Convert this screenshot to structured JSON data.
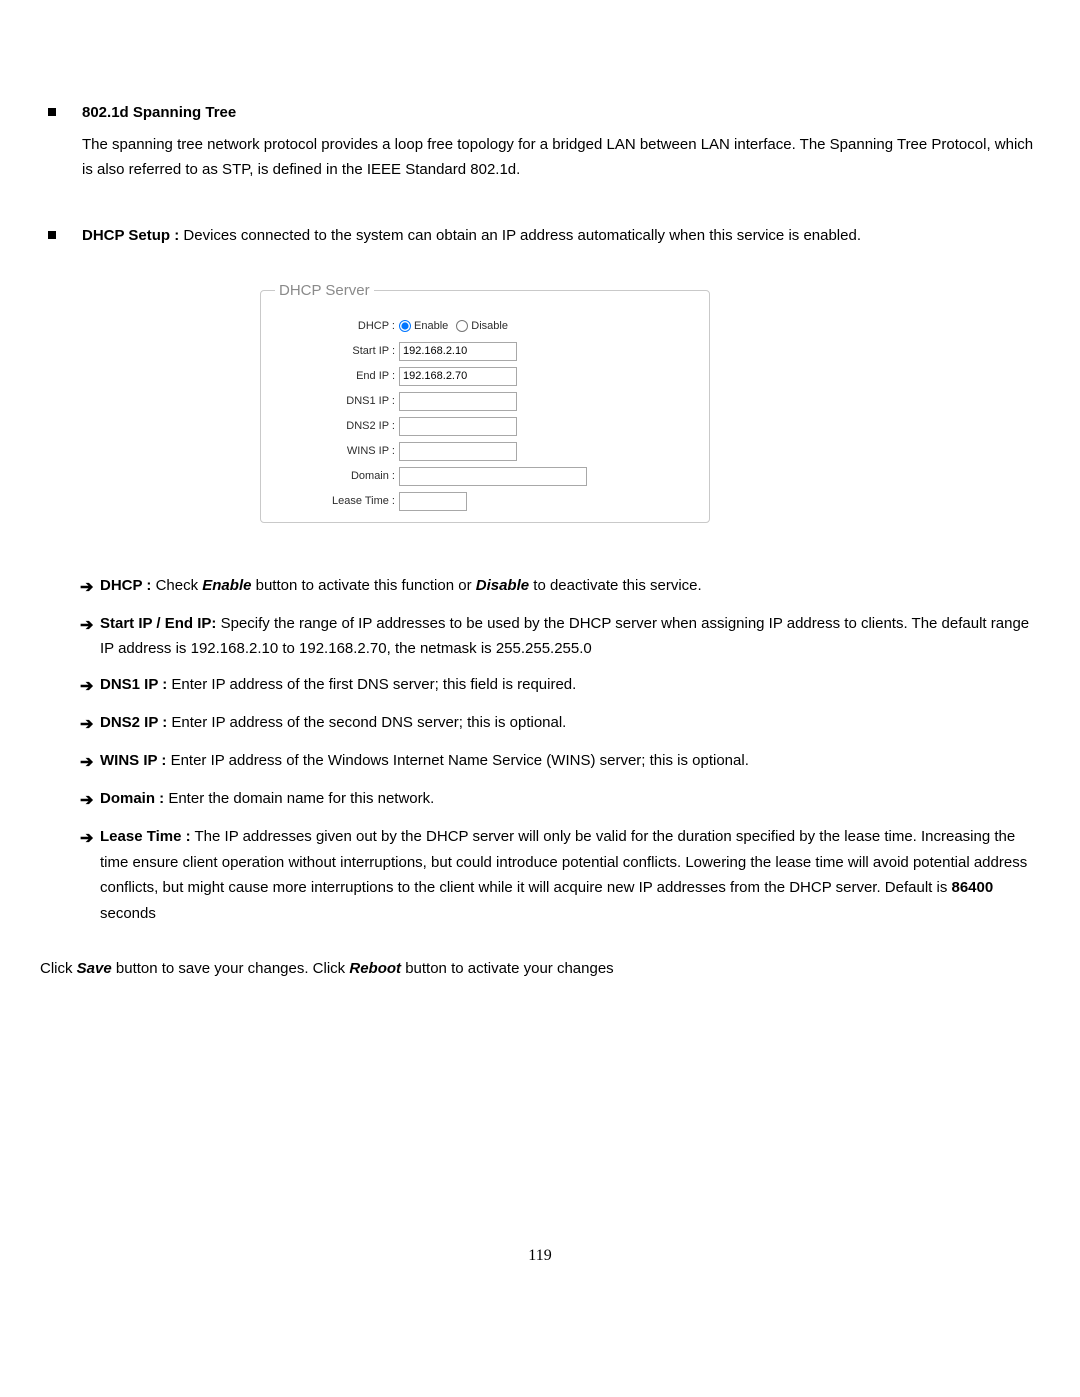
{
  "section1": {
    "title": "802.1d Spanning Tree",
    "desc": "The spanning tree network protocol provides a loop free topology for a bridged LAN between LAN interface. The Spanning Tree Protocol, which is also referred to as STP, is defined in the IEEE Standard 802.1d."
  },
  "section2": {
    "title": "DHCP Setup :",
    "desc": " Devices connected to the system can obtain an IP address automatically when this service is enabled."
  },
  "dhcp_form": {
    "legend": "DHCP Server",
    "labels": {
      "dhcp": "DHCP :",
      "start_ip": "Start IP :",
      "end_ip": "End IP :",
      "dns1": "DNS1 IP :",
      "dns2": "DNS2 IP :",
      "wins": "WINS IP :",
      "domain": "Domain :",
      "lease": "Lease Time :"
    },
    "radio": {
      "enable": "Enable",
      "disable": "Disable"
    },
    "values": {
      "start_ip": "192.168.2.10",
      "end_ip": "192.168.2.70",
      "dns1": "",
      "dns2": "",
      "wins": "",
      "domain": "",
      "lease": ""
    }
  },
  "bullets": {
    "dhcp": {
      "label": "DHCP :",
      "enable": "Enable",
      "mid1": " button to activate this function or ",
      "disable": "Disable",
      "tail": " to deactivate this service.",
      "pre": "  Check "
    },
    "startend": {
      "label": "Start IP / End IP:",
      "text": " Specify the range of IP addresses to be used by the DHCP server when assigning IP address to clients. The default range IP address is 192.168.2.10 to 192.168.2.70, the netmask is 255.255.255.0"
    },
    "dns1": {
      "label": "DNS1 IP :",
      "text": "  Enter IP address of the first DNS server; this field is required."
    },
    "dns2": {
      "label": "DNS2 IP :",
      "text": " Enter IP address of the second DNS server; this is optional."
    },
    "wins": {
      "label": "WINS IP :",
      "text": " Enter IP address of the Windows Internet Name Service (WINS) server; this is optional."
    },
    "domain": {
      "label": "Domain :",
      "text": " Enter the domain name for this network."
    },
    "lease": {
      "label": "Lease Time :",
      "pre": "  The IP addresses given out by the DHCP server will only be valid for the duration specified by the lease time. Increasing the time ensure client operation without interruptions, but could introduce potential conflicts. Lowering the lease time will avoid potential address conflicts, but might cause more interruptions to the client while it will acquire new IP addresses from the DHCP server. Default is ",
      "strong": "86400",
      "tail": " seconds"
    }
  },
  "closing": {
    "pre": "Click ",
    "save": "Save",
    "mid": " button to save your changes. Click ",
    "reboot": "Reboot",
    "tail": " button to activate your changes"
  },
  "page_number": "119"
}
